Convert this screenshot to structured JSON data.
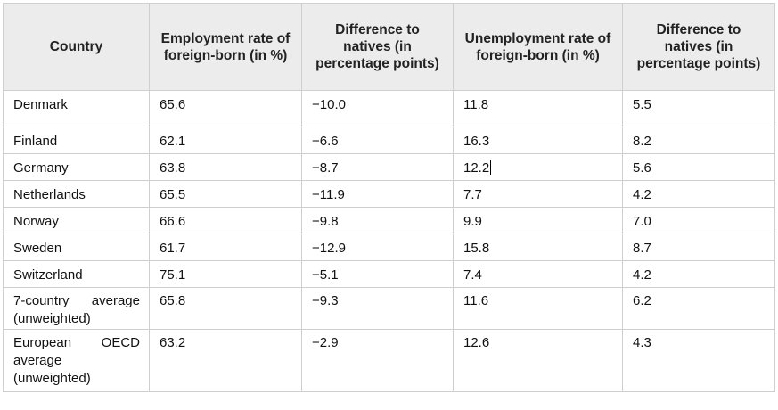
{
  "headers": [
    "Country",
    "Employment rate of foreign-born (in %)",
    "Difference to natives (in percentage points)",
    "Unemployment rate of foreign-born (in %)",
    "Difference to natives (in percentage points)"
  ],
  "rows": [
    {
      "country": "Denmark",
      "employment_rate": "65.6",
      "employment_diff": "−10.0",
      "unemployment_rate": "11.8",
      "unemployment_diff": "5.5"
    },
    {
      "country": "Finland",
      "employment_rate": "62.1",
      "employment_diff": "−6.6",
      "unemployment_rate": "16.3",
      "unemployment_diff": "8.2"
    },
    {
      "country": "Germany",
      "employment_rate": "63.8",
      "employment_diff": "−8.7",
      "unemployment_rate": "12.2",
      "unemployment_diff": "5.6"
    },
    {
      "country": "Netherlands",
      "employment_rate": "65.5",
      "employment_diff": "−11.9",
      "unemployment_rate": "7.7",
      "unemployment_diff": "4.2"
    },
    {
      "country": "Norway",
      "employment_rate": "66.6",
      "employment_diff": "−9.8",
      "unemployment_rate": "9.9",
      "unemployment_diff": "7.0"
    },
    {
      "country": "Sweden",
      "employment_rate": "61.7",
      "employment_diff": "−12.9",
      "unemployment_rate": "15.8",
      "unemployment_diff": "8.7"
    },
    {
      "country": "Switzerland",
      "employment_rate": "75.1",
      "employment_diff": "−5.1",
      "unemployment_rate": "7.4",
      "unemployment_diff": "4.2"
    },
    {
      "country": "7-country average (unweighted)",
      "employment_rate": "65.8",
      "employment_diff": "−9.3",
      "unemployment_rate": "11.6",
      "unemployment_diff": "6.2"
    },
    {
      "country": "European OECD average (unweighted)",
      "employment_rate": "63.2",
      "employment_diff": "−2.9",
      "unemployment_rate": "12.6",
      "unemployment_diff": "4.3"
    }
  ]
}
